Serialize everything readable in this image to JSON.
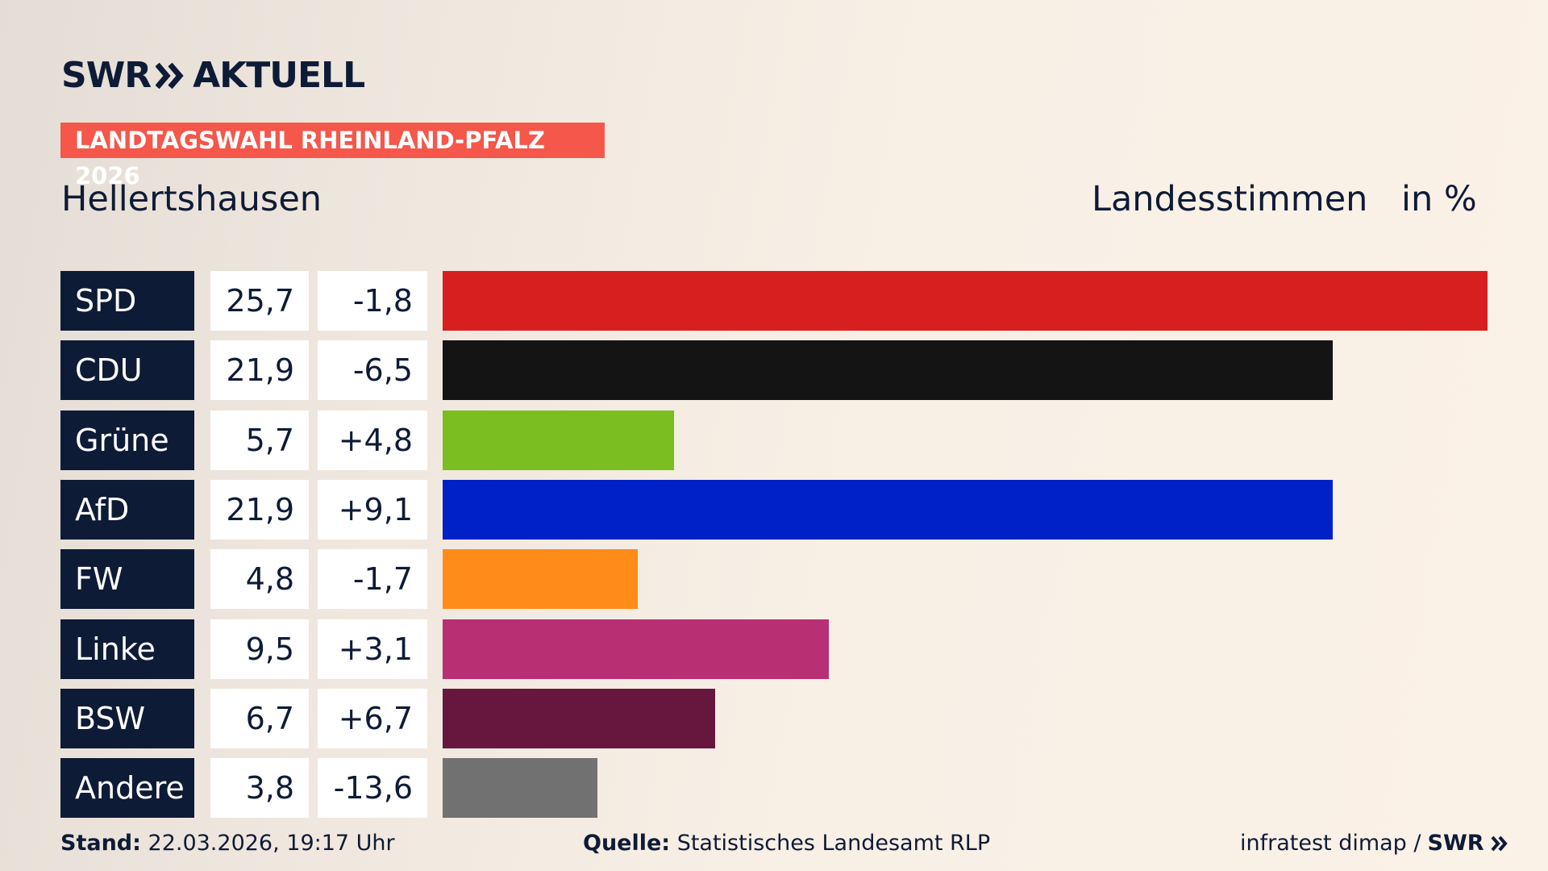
{
  "header": {
    "logo": "SWR",
    "brand": "AKTUELL",
    "tag": "LANDTAGSWAHL RHEINLAND-PFALZ 2026"
  },
  "chart_data": {
    "type": "bar",
    "subtitle": "Hellertshausen",
    "measure": "Landesstimmen",
    "unit": "in %",
    "categories": [
      "SPD",
      "CDU",
      "Grüne",
      "AfD",
      "FW",
      "Linke",
      "BSW",
      "Andere"
    ],
    "values": [
      25.7,
      21.9,
      5.7,
      21.9,
      4.8,
      9.5,
      6.7,
      3.8
    ],
    "value_labels": [
      "25,7",
      "21,9",
      "5,7",
      "21,9",
      "4,8",
      "9,5",
      "6,7",
      "3,8"
    ],
    "changes": [
      -1.8,
      -6.5,
      4.8,
      9.1,
      -1.7,
      3.1,
      6.7,
      -13.6
    ],
    "change_labels": [
      "-1,8",
      "-6,5",
      "+4,8",
      "+9,1",
      "-1,7",
      "+3,1",
      "+6,7",
      "-13,6"
    ],
    "colors": [
      "#d81f20",
      "#141414",
      "#7bbe1f",
      "#0121c8",
      "#ff8b19",
      "#b92f73",
      "#67173d",
      "#717171"
    ]
  },
  "footer": {
    "stand_label": "Stand:",
    "stand": "22.03.2026, 19:17 Uhr",
    "source_label": "Quelle:",
    "source": "Statistisches Landesamt RLP",
    "pollster": "infratest dimap /",
    "logo": "SWR"
  }
}
